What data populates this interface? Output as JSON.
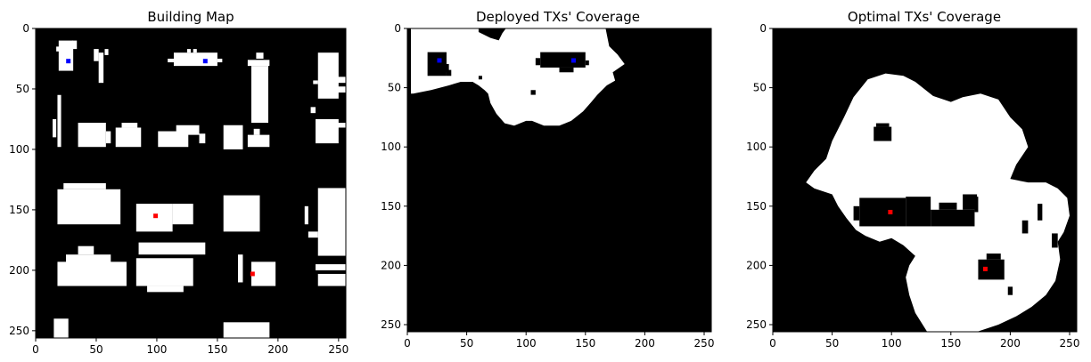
{
  "chart_data": [
    {
      "type": "heatmap",
      "title": "Building Map",
      "xlim": [
        0,
        256
      ],
      "ylim": [
        256,
        0
      ],
      "xticks": [
        0,
        50,
        100,
        150,
        200,
        250
      ],
      "yticks": [
        0,
        50,
        100,
        150,
        200,
        250
      ],
      "colors": {
        "free": "#000000",
        "building": "#ffffff"
      },
      "buildings": [
        [
          17,
          21,
          15,
          19
        ],
        [
          19,
          31,
          10,
          35
        ],
        [
          30,
          34,
          10,
          17
        ],
        [
          48,
          52,
          17,
          27
        ],
        [
          52,
          56,
          20,
          45
        ],
        [
          57,
          60,
          17,
          22
        ],
        [
          114,
          150,
          20,
          31
        ],
        [
          109,
          114,
          25,
          28
        ],
        [
          150,
          154,
          25,
          28
        ],
        [
          130,
          133,
          17,
          20
        ],
        [
          125,
          128,
          17,
          20
        ],
        [
          182,
          188,
          20,
          25
        ],
        [
          175,
          193,
          26,
          31
        ],
        [
          178,
          192,
          31,
          78
        ],
        [
          233,
          250,
          20,
          58
        ],
        [
          243,
          256,
          40,
          45
        ],
        [
          240,
          256,
          48,
          53
        ],
        [
          229,
          233,
          43,
          46
        ],
        [
          18,
          21,
          55,
          98
        ],
        [
          14,
          17,
          75,
          90
        ],
        [
          35,
          58,
          78,
          98
        ],
        [
          58,
          62,
          85,
          95
        ],
        [
          66,
          87,
          82,
          98
        ],
        [
          71,
          84,
          78,
          82
        ],
        [
          101,
          126,
          85,
          98
        ],
        [
          116,
          135,
          80,
          88
        ],
        [
          135,
          140,
          87,
          95
        ],
        [
          155,
          171,
          80,
          100
        ],
        [
          175,
          193,
          88,
          98
        ],
        [
          180,
          185,
          83,
          88
        ],
        [
          227,
          231,
          65,
          70
        ],
        [
          231,
          250,
          75,
          95
        ],
        [
          246,
          256,
          78,
          82
        ],
        [
          18,
          70,
          133,
          162
        ],
        [
          23,
          58,
          128,
          133
        ],
        [
          83,
          113,
          145,
          168
        ],
        [
          113,
          130,
          145,
          162
        ],
        [
          155,
          185,
          138,
          168
        ],
        [
          222,
          225,
          147,
          162
        ],
        [
          233,
          256,
          132,
          188
        ],
        [
          225,
          233,
          168,
          173
        ],
        [
          18,
          75,
          193,
          213
        ],
        [
          25,
          62,
          187,
          195
        ],
        [
          35,
          48,
          180,
          187
        ],
        [
          85,
          140,
          177,
          187
        ],
        [
          83,
          130,
          190,
          213
        ],
        [
          92,
          122,
          213,
          218
        ],
        [
          167,
          171,
          187,
          210
        ],
        [
          178,
          198,
          193,
          213
        ],
        [
          231,
          256,
          195,
          200
        ],
        [
          233,
          256,
          203,
          213
        ],
        [
          15,
          27,
          240,
          256
        ],
        [
          155,
          193,
          243,
          256
        ]
      ],
      "markers": [
        {
          "x": 27,
          "y": 27,
          "color": "#0000ff"
        },
        {
          "x": 140,
          "y": 27,
          "color": "#0000ff"
        },
        {
          "x": 99,
          "y": 155,
          "color": "#ff0000"
        },
        {
          "x": 179,
          "y": 203,
          "color": "#ff0000"
        }
      ]
    },
    {
      "type": "heatmap",
      "title": "Deployed TXs' Coverage",
      "xlim": [
        0,
        256
      ],
      "ylim": [
        256,
        0
      ],
      "xticks": [
        0,
        50,
        100,
        150,
        200,
        250
      ],
      "yticks": [
        0,
        50,
        100,
        150,
        200,
        250
      ],
      "colors": {
        "uncovered": "#000000",
        "covered": "#ffffff"
      },
      "coverage_polygons": [
        [
          [
            3,
            0
          ],
          [
            60,
            0
          ],
          [
            60,
            3
          ],
          [
            70,
            8
          ],
          [
            77,
            10
          ],
          [
            80,
            4
          ],
          [
            83,
            0
          ],
          [
            167,
            0
          ],
          [
            170,
            15
          ],
          [
            177,
            22
          ],
          [
            183,
            30
          ],
          [
            173,
            37
          ],
          [
            175,
            44
          ],
          [
            168,
            48
          ],
          [
            160,
            56
          ],
          [
            155,
            62
          ],
          [
            148,
            70
          ],
          [
            138,
            78
          ],
          [
            128,
            82
          ],
          [
            115,
            82
          ],
          [
            105,
            78
          ],
          [
            100,
            78
          ],
          [
            90,
            82
          ],
          [
            82,
            80
          ],
          [
            75,
            72
          ],
          [
            70,
            63
          ],
          [
            68,
            55
          ],
          [
            65,
            52
          ],
          [
            60,
            48
          ],
          [
            55,
            45
          ],
          [
            45,
            45
          ],
          [
            35,
            48
          ],
          [
            20,
            52
          ],
          [
            5,
            55
          ],
          [
            3,
            55
          ]
        ]
      ],
      "holes": [
        [
          17,
          33,
          20,
          40
        ],
        [
          27,
          35,
          30,
          37
        ],
        [
          33,
          37,
          35,
          40
        ],
        [
          112,
          150,
          20,
          33
        ],
        [
          108,
          112,
          25,
          31
        ],
        [
          128,
          140,
          33,
          37
        ],
        [
          150,
          153,
          27,
          31
        ],
        [
          104,
          108,
          52,
          56
        ],
        [
          60,
          63,
          40,
          43
        ]
      ],
      "markers": [
        {
          "x": 27,
          "y": 27,
          "color": "#0000ff"
        },
        {
          "x": 140,
          "y": 27,
          "color": "#0000ff"
        }
      ]
    },
    {
      "type": "heatmap",
      "title": "Optimal TXs' Coverage",
      "xlim": [
        0,
        256
      ],
      "ylim": [
        256,
        0
      ],
      "xticks": [
        0,
        50,
        100,
        150,
        200,
        250
      ],
      "yticks": [
        0,
        50,
        100,
        150,
        200,
        250
      ],
      "colors": {
        "uncovered": "#000000",
        "covered": "#ffffff"
      },
      "coverage_polygons": [
        [
          [
            80,
            43
          ],
          [
            95,
            38
          ],
          [
            110,
            40
          ],
          [
            120,
            45
          ],
          [
            135,
            57
          ],
          [
            150,
            62
          ],
          [
            160,
            58
          ],
          [
            175,
            55
          ],
          [
            190,
            60
          ],
          [
            200,
            75
          ],
          [
            210,
            85
          ],
          [
            215,
            100
          ],
          [
            205,
            115
          ],
          [
            200,
            127
          ],
          [
            215,
            130
          ],
          [
            230,
            130
          ],
          [
            240,
            135
          ],
          [
            248,
            143
          ],
          [
            250,
            158
          ],
          [
            245,
            172
          ],
          [
            240,
            180
          ],
          [
            242,
            195
          ],
          [
            238,
            213
          ],
          [
            230,
            225
          ],
          [
            218,
            235
          ],
          [
            205,
            243
          ],
          [
            190,
            250
          ],
          [
            172,
            256
          ],
          [
            130,
            256
          ],
          [
            120,
            240
          ],
          [
            115,
            225
          ],
          [
            112,
            210
          ],
          [
            115,
            200
          ],
          [
            120,
            192
          ],
          [
            110,
            183
          ],
          [
            100,
            177
          ],
          [
            90,
            180
          ],
          [
            78,
            175
          ],
          [
            70,
            170
          ],
          [
            62,
            160
          ],
          [
            55,
            150
          ],
          [
            50,
            140
          ],
          [
            35,
            135
          ],
          [
            28,
            130
          ],
          [
            35,
            120
          ],
          [
            45,
            110
          ],
          [
            50,
            95
          ],
          [
            60,
            75
          ],
          [
            68,
            58
          ]
        ]
      ],
      "holes": [
        [
          85,
          100,
          83,
          95
        ],
        [
          87,
          98,
          80,
          83
        ],
        [
          112,
          133,
          142,
          167
        ],
        [
          73,
          112,
          143,
          167
        ],
        [
          68,
          73,
          150,
          162
        ],
        [
          133,
          170,
          153,
          167
        ],
        [
          140,
          155,
          147,
          153
        ],
        [
          160,
          172,
          140,
          153
        ],
        [
          170,
          173,
          142,
          155
        ],
        [
          173,
          195,
          195,
          212
        ],
        [
          180,
          192,
          190,
          195
        ],
        [
          223,
          227,
          148,
          162
        ],
        [
          210,
          215,
          162,
          173
        ],
        [
          235,
          240,
          173,
          185
        ],
        [
          198,
          202,
          218,
          225
        ]
      ],
      "markers": [
        {
          "x": 99,
          "y": 155,
          "color": "#ff0000"
        },
        {
          "x": 179,
          "y": 203,
          "color": "#ff0000"
        }
      ]
    }
  ]
}
